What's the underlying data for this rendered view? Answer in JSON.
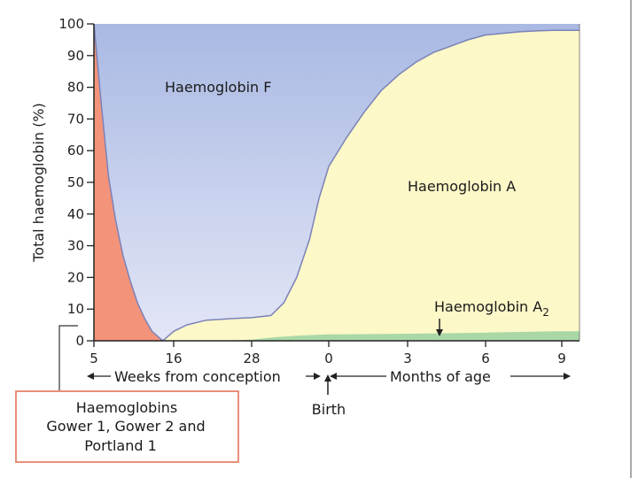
{
  "chart_data": {
    "type": "area",
    "ylabel": "Total haemoglobin (%)",
    "ylim": [
      0,
      100
    ],
    "y_ticks": [
      0,
      10,
      20,
      30,
      40,
      50,
      60,
      70,
      80,
      90,
      100
    ],
    "x_tick_labels": [
      "5",
      "16",
      "28",
      "0",
      "3",
      "6",
      "9"
    ],
    "x_segments": [
      {
        "label": "Weeks from conception",
        "unit": "weeks",
        "ticks": [
          5,
          16,
          28
        ]
      },
      {
        "label": "Months of age",
        "unit": "months",
        "ticks": [
          0,
          3,
          6,
          9
        ]
      }
    ],
    "birth_label": "Birth",
    "series": [
      {
        "name": "Haemoglobin F",
        "color": "#a9b9e3"
      },
      {
        "name": "Haemoglobin A",
        "color": "#fcf8c8"
      },
      {
        "name": "Haemoglobin A2",
        "name_base": "Haemoglobin A",
        "name_sub": "2",
        "color": "#a9d8a6"
      },
      {
        "name": "Haemoglobins Gower 1, Gower 2 and Portland 1",
        "color": "#f3937a"
      }
    ],
    "callout": {
      "line1": "Haemoglobins",
      "line2": "Gower 1, Gower 2 and",
      "line3": "Portland 1",
      "border_color": "#e88f7a"
    },
    "boundary_curves": {
      "embryonic_top": {
        "points": [
          [
            5,
            100
          ],
          [
            6,
            75
          ],
          [
            7,
            52
          ],
          [
            8,
            38
          ],
          [
            9,
            27
          ],
          [
            10,
            19
          ],
          [
            11,
            12
          ],
          [
            12,
            7
          ],
          [
            13,
            3
          ],
          [
            14,
            1
          ],
          [
            14.5,
            0
          ]
        ]
      },
      "hba_top": {
        "points": [
          [
            14.5,
            0
          ],
          [
            16,
            3
          ],
          [
            18,
            5
          ],
          [
            21,
            6.5
          ],
          [
            25,
            7
          ],
          [
            28,
            7.3
          ],
          [
            31,
            8
          ],
          [
            33,
            12
          ],
          [
            35,
            20
          ],
          [
            37,
            32
          ],
          [
            38.5,
            45
          ],
          [
            40,
            55
          ],
          [
            42,
            64
          ],
          [
            44,
            72
          ],
          [
            46,
            79
          ],
          [
            48,
            84
          ],
          [
            50,
            88
          ],
          [
            52,
            91
          ],
          [
            54,
            93
          ],
          [
            56,
            95
          ],
          [
            58,
            96.5
          ],
          [
            60,
            97
          ],
          [
            62,
            97.5
          ],
          [
            64,
            97.8
          ],
          [
            66,
            98
          ]
        ]
      },
      "hba_bottom": {
        "points": [
          [
            24,
            0
          ],
          [
            28,
            0.4
          ],
          [
            32,
            1.2
          ],
          [
            36,
            1.7
          ],
          [
            40,
            2
          ],
          [
            48,
            2.2
          ],
          [
            56,
            2.5
          ],
          [
            66,
            3
          ]
        ]
      },
      "hba2_bottom": {
        "points": [
          [
            28,
            0
          ],
          [
            66,
            0
          ]
        ]
      }
    }
  }
}
